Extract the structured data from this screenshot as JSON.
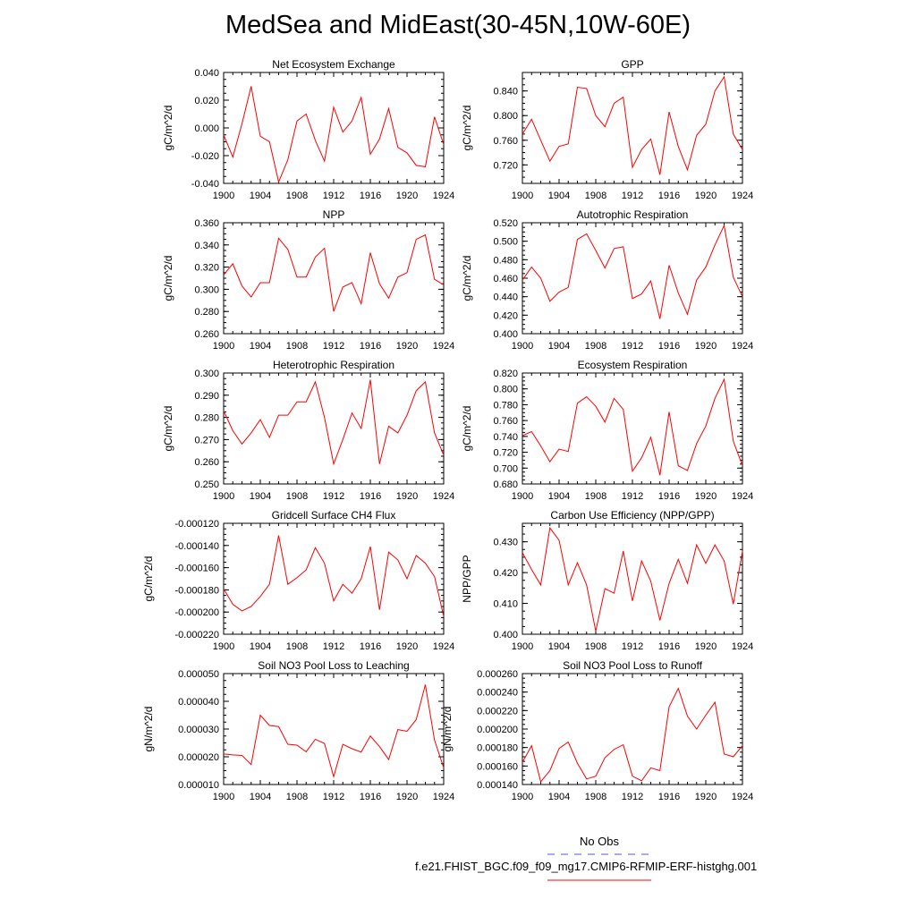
{
  "title": "MedSea and MidEast(30-45N,10W-60E)",
  "legend": {
    "obs_label": "No Obs",
    "obs_color": "#5555dd",
    "case_label": "f.e21.FHIST_BGC.f09_f09_mg17.CMIP6-RFMIP-ERF-histghg.001",
    "case_color": "#ff0000"
  },
  "chart_data": [
    {
      "type": "line",
      "title": "Net Ecosystem Exchange",
      "xlabel": "",
      "ylabel": "gC/m^2/d",
      "xlim": [
        1900,
        1924
      ],
      "ylim": [
        -0.04,
        0.04
      ],
      "xticks": [
        1900,
        1904,
        1908,
        1912,
        1916,
        1920,
        1924
      ],
      "yticks": [
        -0.04,
        -0.02,
        0.0,
        0.02,
        0.04
      ],
      "ytick_labels": [
        "-0.040",
        "-0.020",
        "0.000",
        "0.020",
        "0.040"
      ],
      "x": [
        1900,
        1901,
        1902,
        1903,
        1904,
        1905,
        1906,
        1907,
        1908,
        1909,
        1910,
        1911,
        1912,
        1913,
        1914,
        1915,
        1916,
        1917,
        1918,
        1919,
        1920,
        1921,
        1922,
        1923,
        1924
      ],
      "series": [
        {
          "name": "f.e21.FHIST_BGC.f09_f09_mg17.CMIP6-RFMIP-ERF-histghg.001",
          "values": [
            -0.005,
            -0.021,
            0.003,
            0.03,
            -0.006,
            -0.01,
            -0.039,
            -0.023,
            0.005,
            0.01,
            -0.009,
            -0.024,
            0.015,
            -0.003,
            0.005,
            0.022,
            -0.019,
            -0.008,
            0.014,
            -0.014,
            -0.018,
            -0.027,
            -0.028,
            0.008,
            -0.012
          ]
        }
      ]
    },
    {
      "type": "line",
      "title": "GPP",
      "xlabel": "",
      "ylabel": "gC/m^2/d",
      "xlim": [
        1900,
        1924
      ],
      "ylim": [
        0.69,
        0.87
      ],
      "xticks": [
        1900,
        1904,
        1908,
        1912,
        1916,
        1920,
        1924
      ],
      "yticks": [
        0.72,
        0.76,
        0.8,
        0.84
      ],
      "ytick_labels": [
        "0.720",
        "0.760",
        "0.800",
        "0.840"
      ],
      "x": [
        1900,
        1901,
        1902,
        1903,
        1904,
        1905,
        1906,
        1907,
        1908,
        1909,
        1910,
        1911,
        1912,
        1913,
        1914,
        1915,
        1916,
        1917,
        1918,
        1919,
        1920,
        1921,
        1922,
        1923,
        1924
      ],
      "series": [
        {
          "name": "f.e21.FHIST_BGC.f09_f09_mg17.CMIP6-RFMIP-ERF-histghg.001",
          "values": [
            0.77,
            0.794,
            0.76,
            0.726,
            0.75,
            0.754,
            0.846,
            0.844,
            0.8,
            0.782,
            0.82,
            0.83,
            0.716,
            0.745,
            0.762,
            0.704,
            0.806,
            0.75,
            0.712,
            0.768,
            0.786,
            0.84,
            0.863,
            0.77,
            0.745
          ]
        }
      ]
    },
    {
      "type": "line",
      "title": "NPP",
      "xlabel": "",
      "ylabel": "gC/m^2/d",
      "xlim": [
        1900,
        1924
      ],
      "ylim": [
        0.26,
        0.36
      ],
      "xticks": [
        1900,
        1904,
        1908,
        1912,
        1916,
        1920,
        1924
      ],
      "yticks": [
        0.26,
        0.28,
        0.3,
        0.32,
        0.34,
        0.36
      ],
      "ytick_labels": [
        "0.260",
        "0.280",
        "0.300",
        "0.320",
        "0.340",
        "0.360"
      ],
      "x": [
        1900,
        1901,
        1902,
        1903,
        1904,
        1905,
        1906,
        1907,
        1908,
        1909,
        1910,
        1911,
        1912,
        1913,
        1914,
        1915,
        1916,
        1917,
        1918,
        1919,
        1920,
        1921,
        1922,
        1923,
        1924
      ],
      "series": [
        {
          "name": "f.e21.FHIST_BGC.f09_f09_mg17.CMIP6-RFMIP-ERF-histghg.001",
          "values": [
            0.313,
            0.323,
            0.303,
            0.293,
            0.306,
            0.306,
            0.346,
            0.336,
            0.311,
            0.311,
            0.329,
            0.337,
            0.28,
            0.302,
            0.306,
            0.287,
            0.333,
            0.305,
            0.292,
            0.311,
            0.315,
            0.345,
            0.349,
            0.309,
            0.304
          ]
        }
      ]
    },
    {
      "type": "line",
      "title": "Autotrophic Respiration",
      "xlabel": "",
      "ylabel": "gC/m^2/d",
      "xlim": [
        1900,
        1924
      ],
      "ylim": [
        0.4,
        0.52
      ],
      "xticks": [
        1900,
        1904,
        1908,
        1912,
        1916,
        1920,
        1924
      ],
      "yticks": [
        0.4,
        0.42,
        0.44,
        0.46,
        0.48,
        0.5,
        0.52
      ],
      "ytick_labels": [
        "0.400",
        "0.420",
        "0.440",
        "0.460",
        "0.480",
        "0.500",
        "0.520"
      ],
      "x": [
        1900,
        1901,
        1902,
        1903,
        1904,
        1905,
        1906,
        1907,
        1908,
        1909,
        1910,
        1911,
        1912,
        1913,
        1914,
        1915,
        1916,
        1917,
        1918,
        1919,
        1920,
        1921,
        1922,
        1923,
        1924
      ],
      "series": [
        {
          "name": "f.e21.FHIST_BGC.f09_f09_mg17.CMIP6-RFMIP-ERF-histghg.001",
          "values": [
            0.458,
            0.472,
            0.46,
            0.435,
            0.445,
            0.45,
            0.502,
            0.508,
            0.49,
            0.471,
            0.492,
            0.494,
            0.438,
            0.443,
            0.457,
            0.416,
            0.474,
            0.444,
            0.421,
            0.458,
            0.472,
            0.496,
            0.517,
            0.461,
            0.44
          ]
        }
      ]
    },
    {
      "type": "line",
      "title": "Heterotrophic Respiration",
      "xlabel": "",
      "ylabel": "gC/m^2/d",
      "xlim": [
        1900,
        1924
      ],
      "ylim": [
        0.25,
        0.3
      ],
      "xticks": [
        1900,
        1904,
        1908,
        1912,
        1916,
        1920,
        1924
      ],
      "yticks": [
        0.25,
        0.26,
        0.27,
        0.28,
        0.29,
        0.3
      ],
      "ytick_labels": [
        "0.250",
        "0.260",
        "0.270",
        "0.280",
        "0.290",
        "0.300"
      ],
      "x": [
        1900,
        1901,
        1902,
        1903,
        1904,
        1905,
        1906,
        1907,
        1908,
        1909,
        1910,
        1911,
        1912,
        1913,
        1914,
        1915,
        1916,
        1917,
        1918,
        1919,
        1920,
        1921,
        1922,
        1923,
        1924
      ],
      "series": [
        {
          "name": "f.e21.FHIST_BGC.f09_f09_mg17.CMIP6-RFMIP-ERF-histghg.001",
          "values": [
            0.283,
            0.274,
            0.268,
            0.273,
            0.279,
            0.271,
            0.281,
            0.281,
            0.287,
            0.287,
            0.296,
            0.28,
            0.259,
            0.27,
            0.282,
            0.275,
            0.297,
            0.259,
            0.276,
            0.273,
            0.281,
            0.292,
            0.296,
            0.273,
            0.263
          ]
        }
      ]
    },
    {
      "type": "line",
      "title": "Ecosystem Respiration",
      "xlabel": "",
      "ylabel": "gC/m^2/d",
      "xlim": [
        1900,
        1924
      ],
      "ylim": [
        0.68,
        0.82
      ],
      "xticks": [
        1900,
        1904,
        1908,
        1912,
        1916,
        1920,
        1924
      ],
      "yticks": [
        0.68,
        0.7,
        0.72,
        0.74,
        0.76,
        0.78,
        0.8,
        0.82
      ],
      "ytick_labels": [
        "0.680",
        "0.700",
        "0.720",
        "0.740",
        "0.760",
        "0.780",
        "0.800",
        "0.820"
      ],
      "x": [
        1900,
        1901,
        1902,
        1903,
        1904,
        1905,
        1906,
        1907,
        1908,
        1909,
        1910,
        1911,
        1912,
        1913,
        1914,
        1915,
        1916,
        1917,
        1918,
        1919,
        1920,
        1921,
        1922,
        1923,
        1924
      ],
      "series": [
        {
          "name": "f.e21.FHIST_BGC.f09_f09_mg17.CMIP6-RFMIP-ERF-histghg.001",
          "values": [
            0.741,
            0.746,
            0.728,
            0.708,
            0.724,
            0.721,
            0.782,
            0.79,
            0.778,
            0.758,
            0.788,
            0.774,
            0.696,
            0.713,
            0.739,
            0.691,
            0.771,
            0.703,
            0.697,
            0.731,
            0.753,
            0.788,
            0.812,
            0.734,
            0.703
          ]
        }
      ]
    },
    {
      "type": "line",
      "title": "Gridcell Surface CH4 Flux",
      "xlabel": "",
      "ylabel": "gC/m^2/d",
      "xlim": [
        1900,
        1924
      ],
      "ylim": [
        -0.00022,
        -0.00012
      ],
      "xticks": [
        1900,
        1904,
        1908,
        1912,
        1916,
        1920,
        1924
      ],
      "yticks": [
        -0.00022,
        -0.0002,
        -0.00018,
        -0.00016,
        -0.00014,
        -0.00012
      ],
      "ytick_labels": [
        "-0.000220",
        "-0.000200",
        "-0.000180",
        "-0.000160",
        "-0.000140",
        "-0.000120"
      ],
      "x": [
        1900,
        1901,
        1902,
        1903,
        1904,
        1905,
        1906,
        1907,
        1908,
        1909,
        1910,
        1911,
        1912,
        1913,
        1914,
        1915,
        1916,
        1917,
        1918,
        1919,
        1920,
        1921,
        1922,
        1923,
        1924
      ],
      "series": [
        {
          "name": "f.e21.FHIST_BGC.f09_f09_mg17.CMIP6-RFMIP-ERF-histghg.001",
          "values": [
            -0.000179,
            -0.000193,
            -0.000199,
            -0.000195,
            -0.000186,
            -0.000175,
            -0.000131,
            -0.000175,
            -0.000169,
            -0.000162,
            -0.000142,
            -0.000156,
            -0.00019,
            -0.000175,
            -0.000183,
            -0.00017,
            -0.000141,
            -0.000198,
            -0.000146,
            -0.000153,
            -0.00017,
            -0.000149,
            -0.000156,
            -0.000168,
            -0.000204
          ]
        }
      ]
    },
    {
      "type": "line",
      "title": "Carbon Use Efficiency (NPP/GPP)",
      "xlabel": "",
      "ylabel": "NPP/GPP",
      "xlim": [
        1900,
        1924
      ],
      "ylim": [
        0.4,
        0.436
      ],
      "xticks": [
        1900,
        1904,
        1908,
        1912,
        1916,
        1920,
        1924
      ],
      "yticks": [
        0.4,
        0.41,
        0.42,
        0.43
      ],
      "ytick_labels": [
        "0.400",
        "0.410",
        "0.420",
        "0.430"
      ],
      "x": [
        1900,
        1901,
        1902,
        1903,
        1904,
        1905,
        1906,
        1907,
        1908,
        1909,
        1910,
        1911,
        1912,
        1913,
        1914,
        1915,
        1916,
        1917,
        1918,
        1919,
        1920,
        1921,
        1922,
        1923,
        1924
      ],
      "series": [
        {
          "name": "f.e21.FHIST_BGC.f09_f09_mg17.CMIP6-RFMIP-ERF-histghg.001",
          "values": [
            0.4265,
            0.421,
            0.416,
            0.4345,
            0.4305,
            0.416,
            0.4232,
            0.416,
            0.401,
            0.4148,
            0.4133,
            0.427,
            0.4108,
            0.4238,
            0.4172,
            0.4045,
            0.4165,
            0.4243,
            0.4165,
            0.429,
            0.423,
            0.429,
            0.4238,
            0.4098,
            0.427
          ]
        }
      ]
    },
    {
      "type": "line",
      "title": "Soil NO3 Pool Loss to Leaching",
      "xlabel": "",
      "ylabel": "gN/m^2/d",
      "xlim": [
        1900,
        1924
      ],
      "ylim": [
        1e-05,
        5e-05
      ],
      "xticks": [
        1900,
        1904,
        1908,
        1912,
        1916,
        1920,
        1924
      ],
      "yticks": [
        1e-05,
        2e-05,
        3e-05,
        4e-05,
        5e-05
      ],
      "ytick_labels": [
        "0.000010",
        "0.000020",
        "0.000030",
        "0.000040",
        "0.000050"
      ],
      "x": [
        1900,
        1901,
        1902,
        1903,
        1904,
        1905,
        1906,
        1907,
        1908,
        1909,
        1910,
        1911,
        1912,
        1913,
        1914,
        1915,
        1916,
        1917,
        1918,
        1919,
        1920,
        1921,
        1922,
        1923,
        1924
      ],
      "series": [
        {
          "name": "f.e21.FHIST_BGC.f09_f09_mg17.CMIP6-RFMIP-ERF-histghg.001",
          "values": [
            2.1e-05,
            2.07e-05,
            2.05e-05,
            1.72e-05,
            3.5e-05,
            3.13e-05,
            3.09e-05,
            2.45e-05,
            2.42e-05,
            2.18e-05,
            2.63e-05,
            2.48e-05,
            1.28e-05,
            2.45e-05,
            2.29e-05,
            2.17e-05,
            2.75e-05,
            2.37e-05,
            1.9e-05,
            2.98e-05,
            2.92e-05,
            3.34e-05,
            4.6e-05,
            2.6e-05,
            1.6e-05
          ]
        }
      ]
    },
    {
      "type": "line",
      "title": "Soil NO3 Pool Loss to Runoff",
      "xlabel": "",
      "ylabel": "gN/m^2/d",
      "xlim": [
        1900,
        1924
      ],
      "ylim": [
        0.00014,
        0.00026
      ],
      "xticks": [
        1900,
        1904,
        1908,
        1912,
        1916,
        1920,
        1924
      ],
      "yticks": [
        0.00014,
        0.00016,
        0.00018,
        0.0002,
        0.00022,
        0.00024,
        0.00026
      ],
      "ytick_labels": [
        "0.000140",
        "0.000160",
        "0.000180",
        "0.000200",
        "0.000220",
        "0.000240",
        "0.000260"
      ],
      "x": [
        1900,
        1901,
        1902,
        1903,
        1904,
        1905,
        1906,
        1907,
        1908,
        1909,
        1910,
        1911,
        1912,
        1913,
        1914,
        1915,
        1916,
        1917,
        1918,
        1919,
        1920,
        1921,
        1922,
        1923,
        1924
      ],
      "series": [
        {
          "name": "f.e21.FHIST_BGC.f09_f09_mg17.CMIP6-RFMIP-ERF-histghg.001",
          "values": [
            0.000164,
            0.000182,
            0.000143,
            0.000155,
            0.000179,
            0.000186,
            0.000163,
            0.000146,
            0.000149,
            0.000169,
            0.000178,
            0.000183,
            0.000149,
            0.000144,
            0.000158,
            0.000155,
            0.000224,
            0.000244,
            0.000214,
            0.0002,
            0.000215,
            0.000229,
            0.000173,
            0.00017,
            0.000182
          ]
        }
      ]
    }
  ]
}
